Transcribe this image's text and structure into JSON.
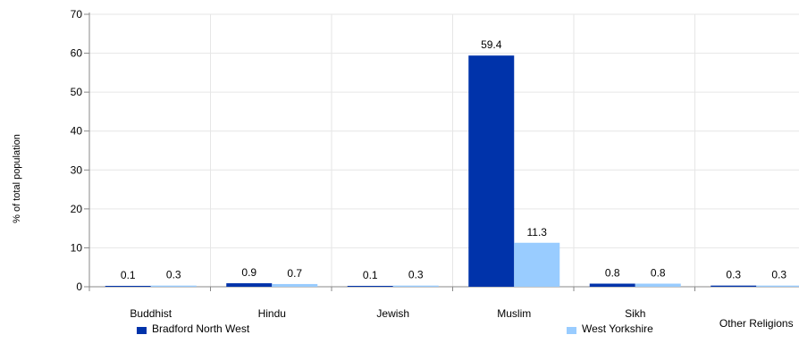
{
  "chart_data": {
    "type": "bar",
    "ylabel": "% of total population",
    "ylim": [
      0,
      70
    ],
    "yticks": [
      0,
      10,
      20,
      30,
      40,
      50,
      60,
      70
    ],
    "grid": true,
    "categories": [
      "Buddhist",
      "Hindu",
      "Jewish",
      "Muslim",
      "Sikh",
      "Other Religions"
    ],
    "series": [
      {
        "name": "Bradford North West",
        "color": "#0033aa",
        "values": [
          0.1,
          0.9,
          0.1,
          59.4,
          0.8,
          0.3
        ]
      },
      {
        "name": "West Yorkshire",
        "color": "#99ccff",
        "values": [
          0.3,
          0.7,
          0.3,
          11.3,
          0.8,
          0.3
        ]
      }
    ],
    "legend_position": "bottom"
  }
}
